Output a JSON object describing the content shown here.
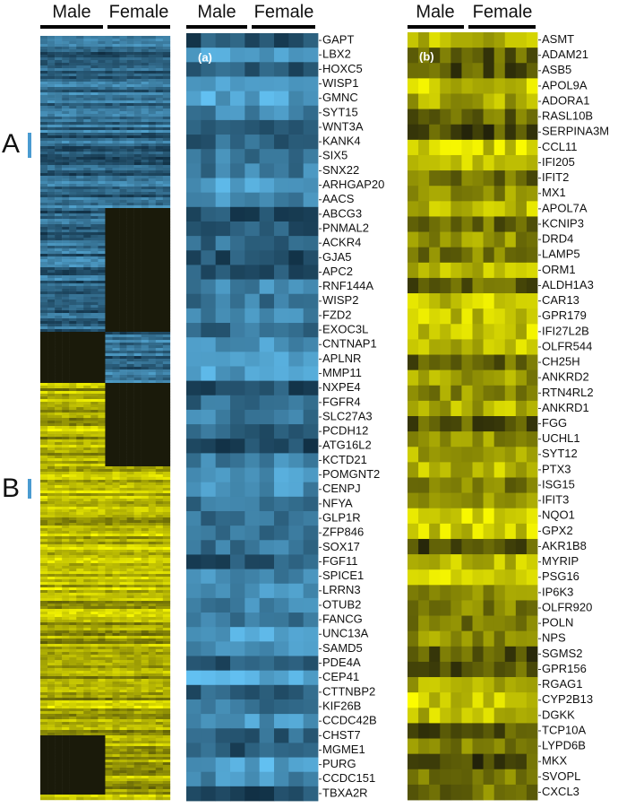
{
  "left_panel": {
    "group_labels": [
      "Male",
      "Female"
    ],
    "markers": [
      "A",
      "B"
    ]
  },
  "panel_a": {
    "label": "(a)",
    "group_labels": [
      "Male",
      "Female"
    ],
    "genes": [
      "GAPT",
      "LBX2",
      "HOXC5",
      "WISP1",
      "GMNC",
      "SYT15",
      "WNT3A",
      "KANK4",
      "SIX5",
      "SNX22",
      "ARHGAP20",
      "AACS",
      "ABCG3",
      "PNMAL2",
      "ACKR4",
      "GJA5",
      "APC2",
      "RNF144A",
      "WISP2",
      "FZD2",
      "EXOC3L",
      "CNTNAP1",
      "APLNR",
      "MMP11",
      "NXPE4",
      "FGFR4",
      "SLC27A3",
      "PCDH12",
      "ATG16L2",
      "KCTD21",
      "POMGNT2",
      "CENPJ",
      "NFYA",
      "GLP1R",
      "ZFP846",
      "SOX17",
      "FGF11",
      "SPICE1",
      "LRRN3",
      "OTUB2",
      "FANCG",
      "UNC13A",
      "SAMD5",
      "PDE4A",
      "CEP41",
      "CTTNBP2",
      "KIF26B",
      "CCDC42B",
      "CHST7",
      "MGME1",
      "PURG",
      "CCDC151",
      "TBXA2R"
    ]
  },
  "panel_b": {
    "label": "(b)",
    "group_labels": [
      "Male",
      "Female"
    ],
    "genes": [
      "ASMT",
      "ADAM21",
      "ASB5",
      "APOL9A",
      "ADORA1",
      "RASL10B",
      "SERPINA3M",
      "CCL11",
      "IFI205",
      "IFIT2",
      "MX1",
      "APOL7A",
      "KCNIP3",
      "DRD4",
      "LAMP5",
      "ORM1",
      "ALDH1A3",
      "CAR13",
      "GPR179",
      "IFI27L2B",
      "OLFR544",
      "CH25H",
      "ANKRD2",
      "RTN4RL2",
      "ANKRD1",
      "FGG",
      "UCHL1",
      "SYT12",
      "PTX3",
      "ISG15",
      "IFIT3",
      "NQO1",
      "GPX2",
      "AKR1B8",
      "MYRIP",
      "PSG16",
      "IP6K3",
      "OLFR920",
      "POLN",
      "NPS",
      "SGMS2",
      "GPR156",
      "RGAG1",
      "CYP2B13",
      "DGKK",
      "TCP10A",
      "LYPD6B",
      "MKX",
      "SVOPL",
      "CXCL3"
    ]
  }
}
